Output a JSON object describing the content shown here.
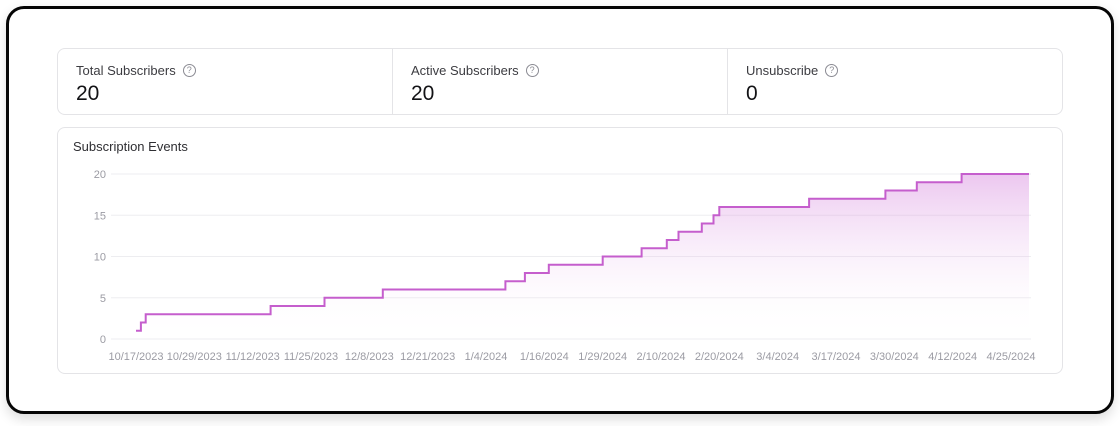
{
  "stats": {
    "cards": [
      {
        "label": "Total Subscribers",
        "value": "20",
        "help_icon": "?"
      },
      {
        "label": "Active Subscribers",
        "value": "20",
        "help_icon": "?"
      },
      {
        "label": "Unsubscribe",
        "value": "0",
        "help_icon": "?"
      }
    ]
  },
  "chart": {
    "title": "Subscription Events"
  },
  "chart_data": {
    "type": "area",
    "subtype": "step-after-cumulative",
    "title": "Subscription Events",
    "xlabel": "",
    "ylabel": "",
    "ylim": [
      0,
      20
    ],
    "y_ticks": [
      0,
      5,
      10,
      15,
      20
    ],
    "grid": "horizontal",
    "legend": "none",
    "x_tick_labels": [
      "10/17/2023",
      "10/29/2023",
      "11/12/2023",
      "11/25/2023",
      "12/8/2023",
      "12/21/2023",
      "1/4/2024",
      "1/16/2024",
      "1/29/2024",
      "2/10/2024",
      "2/20/2024",
      "3/4/2024",
      "3/17/2024",
      "3/30/2024",
      "4/12/2024",
      "4/25/2024"
    ],
    "tick_days": [
      0,
      12,
      26,
      39,
      52,
      65,
      79,
      91,
      104,
      116,
      126,
      139,
      152,
      165,
      178,
      191
    ],
    "x_end_day": 195,
    "line_color": "#c55ecd",
    "fill_top_color": "#cd6bd6",
    "fill_top_opacity": 0.38,
    "grid_color": "#ededf0",
    "axis_text_color": "#9b9ba3",
    "series": [
      {
        "name": "Subscribers",
        "points": [
          {
            "date": "10/17/2023",
            "day": 0,
            "value": 1
          },
          {
            "date": "10/18/2023",
            "day": 1,
            "value": 2
          },
          {
            "date": "10/19/2023",
            "day": 2,
            "value": 3
          },
          {
            "date": "11/16/2023",
            "day": 30,
            "value": 4
          },
          {
            "date": "11/28/2023",
            "day": 42,
            "value": 5
          },
          {
            "date": "12/11/2023",
            "day": 55,
            "value": 6
          },
          {
            "date": "1/8/2024",
            "day": 83,
            "value": 7
          },
          {
            "date": "1/12/2024",
            "day": 87,
            "value": 8
          },
          {
            "date": "1/17/2024",
            "day": 92,
            "value": 9
          },
          {
            "date": "1/29/2024",
            "day": 104,
            "value": 10
          },
          {
            "date": "2/6/2024",
            "day": 112,
            "value": 11
          },
          {
            "date": "2/11/2024",
            "day": 117,
            "value": 12
          },
          {
            "date": "2/13/2024",
            "day": 119,
            "value": 13
          },
          {
            "date": "2/17/2024",
            "day": 123,
            "value": 14
          },
          {
            "date": "2/19/2024",
            "day": 125,
            "value": 15
          },
          {
            "date": "2/20/2024",
            "day": 126,
            "value": 16
          },
          {
            "date": "3/11/2024",
            "day": 146,
            "value": 17
          },
          {
            "date": "3/28/2024",
            "day": 163,
            "value": 18
          },
          {
            "date": "4/4/2024",
            "day": 170,
            "value": 19
          },
          {
            "date": "4/14/2024",
            "day": 180,
            "value": 20
          }
        ]
      }
    ]
  }
}
